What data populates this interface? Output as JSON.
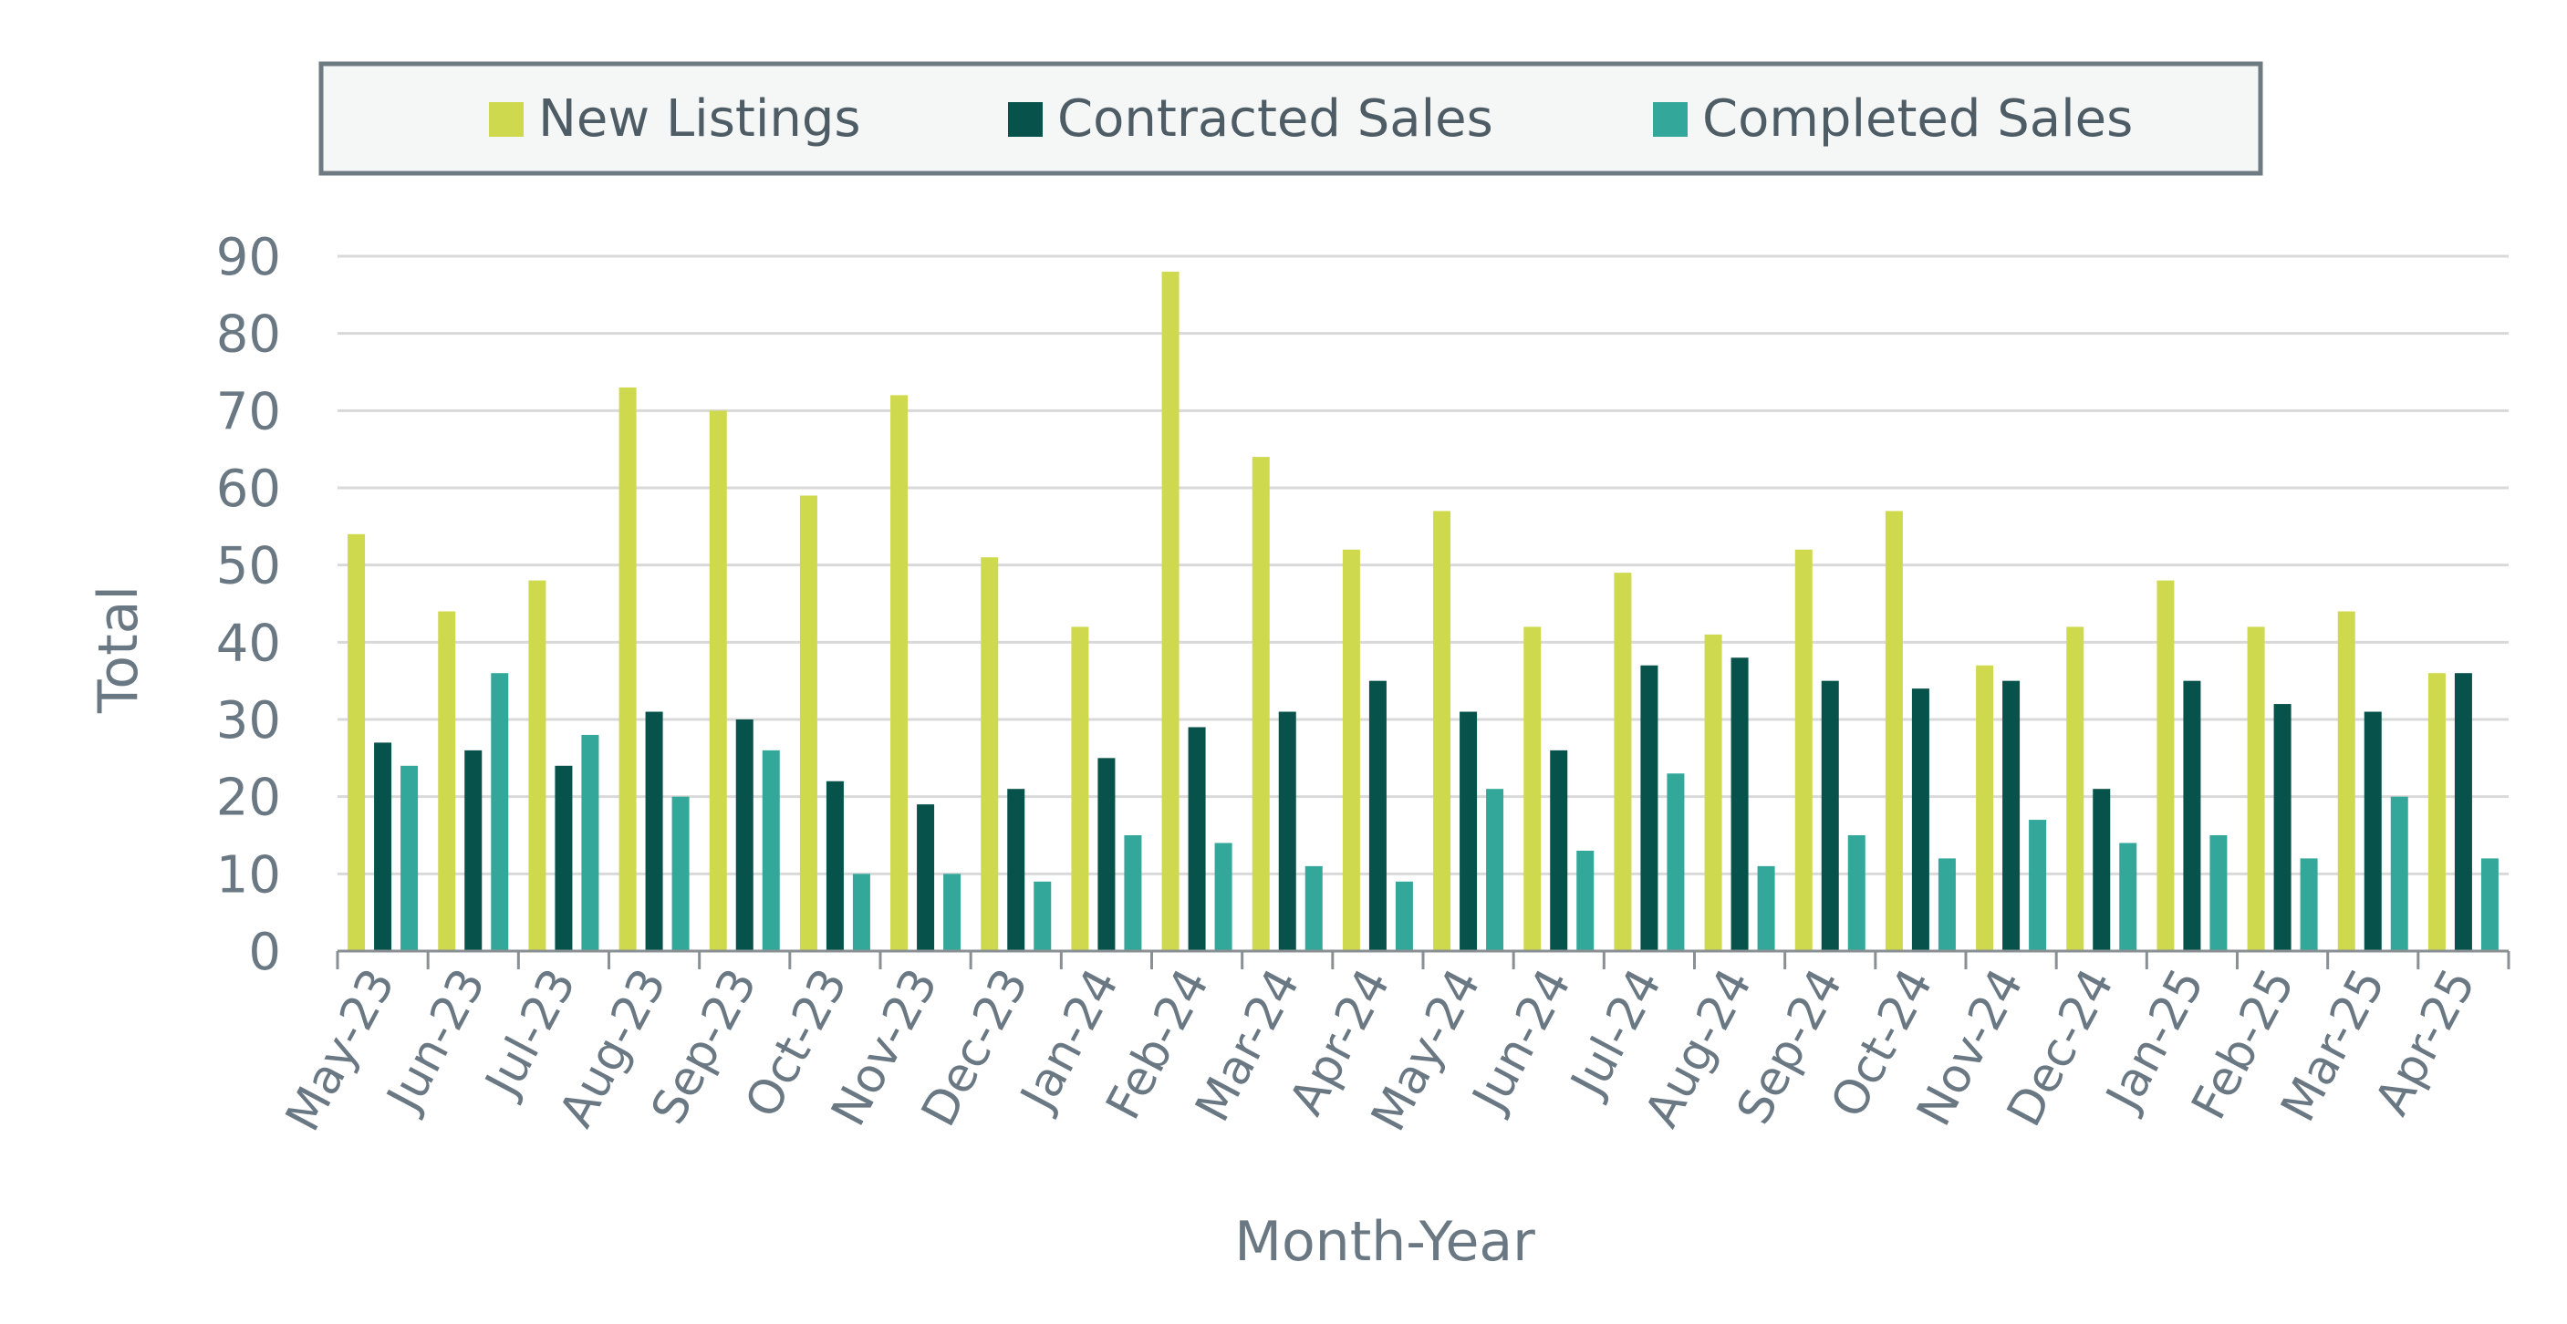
{
  "chart_data": {
    "type": "bar",
    "categories": [
      "May-23",
      "Jun-23",
      "Jul-23",
      "Aug-23",
      "Sep-23",
      "Oct-23",
      "Nov-23",
      "Dec-23",
      "Jan-24",
      "Feb-24",
      "Mar-24",
      "Apr-24",
      "May-24",
      "Jun-24",
      "Jul-24",
      "Aug-24",
      "Sep-24",
      "Oct-24",
      "Nov-24",
      "Dec-24",
      "Jan-25",
      "Feb-25",
      "Mar-25",
      "Apr-25"
    ],
    "series": [
      {
        "name": "New Listings",
        "color": "#cfd94d",
        "values": [
          54,
          44,
          48,
          73,
          70,
          59,
          72,
          51,
          42,
          88,
          64,
          52,
          57,
          42,
          49,
          41,
          52,
          57,
          37,
          42,
          48,
          42,
          44,
          36
        ]
      },
      {
        "name": "Contracted Sales",
        "color": "#07524a",
        "values": [
          27,
          26,
          24,
          31,
          30,
          22,
          19,
          21,
          25,
          29,
          31,
          35,
          31,
          26,
          37,
          38,
          35,
          34,
          35,
          21,
          35,
          32,
          31,
          36
        ]
      },
      {
        "name": "Completed Sales",
        "color": "#33a89a",
        "values": [
          24,
          36,
          28,
          20,
          26,
          10,
          10,
          9,
          15,
          14,
          11,
          9,
          21,
          13,
          23,
          11,
          15,
          12,
          17,
          14,
          15,
          12,
          20,
          12
        ]
      }
    ],
    "title": "",
    "xlabel": "Month-Year",
    "ylabel": "Total",
    "ylim": [
      0,
      90
    ],
    "yticks": [
      0,
      10,
      20,
      30,
      40,
      50,
      60,
      70,
      80,
      90
    ],
    "grid": "horizontal",
    "legend_position": "top"
  }
}
